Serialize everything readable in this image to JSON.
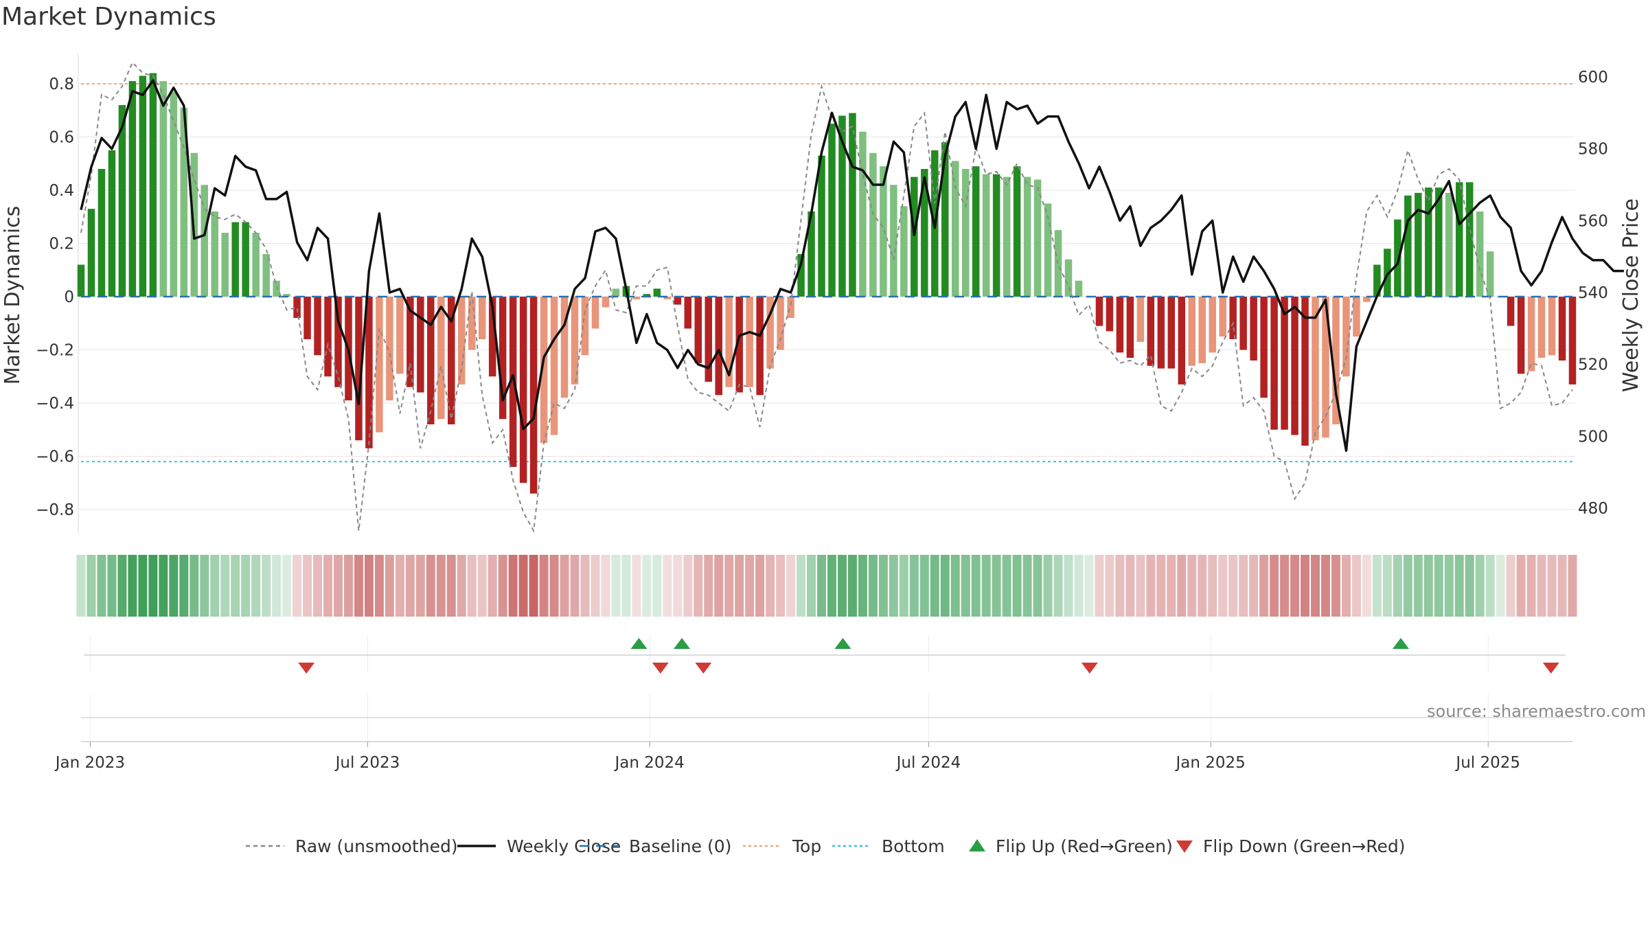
{
  "chart_data": {
    "type": "bar",
    "title": "Market Dynamics",
    "ylabel": "Market Dynamics",
    "y2label": "Weekly Close Price",
    "ylim": [
      -0.9,
      0.9
    ],
    "y2lim": [
      474,
      604
    ],
    "yticks": [
      -0.8,
      -0.6,
      -0.4,
      -0.2,
      0,
      0.2,
      0.4,
      0.6,
      0.8
    ],
    "ytick_labels": [
      "−0.8",
      "−0.6",
      "−0.4",
      "−0.2",
      "0",
      "0.2",
      "0.4",
      "0.6",
      "0.8"
    ],
    "y2ticks": [
      480,
      500,
      520,
      540,
      560,
      580,
      600
    ],
    "y2tick_labels": [
      "480",
      "500",
      "520",
      "540",
      "560",
      "580",
      "600"
    ],
    "x_start": "2022-12-26",
    "x_end": "2025-08-25",
    "xticks": [
      {
        "date": "2023-01-01",
        "label": "Jan 2023"
      },
      {
        "date": "2023-07-01",
        "label": "Jul 2023"
      },
      {
        "date": "2024-01-01",
        "label": "Jan 2024"
      },
      {
        "date": "2024-07-01",
        "label": "Jul 2024"
      },
      {
        "date": "2025-01-01",
        "label": "Jan 2025"
      },
      {
        "date": "2025-07-01",
        "label": "Jul 2025"
      }
    ],
    "top_level": 0.8,
    "bottom_level": -0.62,
    "baseline": 0,
    "series": [
      {
        "name": "Market Dynamics",
        "values": [
          0.12,
          0.33,
          0.48,
          0.55,
          0.72,
          0.81,
          0.83,
          0.84,
          0.81,
          0.77,
          0.71,
          0.54,
          0.42,
          0.32,
          0.24,
          0.28,
          0.28,
          0.24,
          0.16,
          0.06,
          0.01,
          -0.08,
          -0.16,
          -0.22,
          -0.3,
          -0.34,
          -0.39,
          -0.54,
          -0.57,
          -0.51,
          -0.39,
          -0.29,
          -0.34,
          -0.36,
          -0.48,
          -0.46,
          -0.48,
          -0.33,
          -0.2,
          -0.16,
          -0.3,
          -0.46,
          -0.64,
          -0.7,
          -0.74,
          -0.55,
          -0.52,
          -0.38,
          -0.33,
          -0.22,
          -0.12,
          -0.04,
          0.03,
          0.04,
          -0.01,
          0.01,
          0.03,
          -0.01,
          -0.03,
          -0.12,
          -0.25,
          -0.32,
          -0.37,
          -0.34,
          -0.36,
          -0.34,
          -0.37,
          -0.27,
          -0.2,
          -0.08,
          0.16,
          0.32,
          0.53,
          0.65,
          0.68,
          0.69,
          0.62,
          0.54,
          0.49,
          0.42,
          0.34,
          0.45,
          0.48,
          0.55,
          0.58,
          0.51,
          0.48,
          0.49,
          0.46,
          0.46,
          0.45,
          0.49,
          0.45,
          0.44,
          0.35,
          0.25,
          0.14,
          0.06,
          0.0,
          -0.11,
          -0.13,
          -0.21,
          -0.23,
          -0.17,
          -0.26,
          -0.27,
          -0.27,
          -0.33,
          -0.26,
          -0.25,
          -0.21,
          -0.15,
          -0.16,
          -0.2,
          -0.24,
          -0.38,
          -0.5,
          -0.5,
          -0.52,
          -0.56,
          -0.54,
          -0.53,
          -0.48,
          -0.3,
          -0.15,
          -0.02,
          0.12,
          0.18,
          0.29,
          0.38,
          0.39,
          0.41,
          0.41,
          0.39,
          0.43,
          0.43,
          0.32,
          0.17,
          0.0,
          -0.11,
          -0.29,
          -0.28,
          -0.23,
          -0.22,
          -0.24,
          -0.33
        ]
      },
      {
        "name": "Raw (unsmoothed)",
        "values": [
          0.24,
          0.46,
          0.76,
          0.74,
          0.79,
          0.88,
          0.84,
          0.83,
          0.76,
          0.66,
          0.56,
          0.44,
          0.33,
          0.3,
          0.29,
          0.31,
          0.28,
          0.24,
          0.18,
          0.04,
          -0.05,
          -0.04,
          -0.3,
          -0.35,
          -0.18,
          -0.3,
          -0.46,
          -0.88,
          -0.55,
          -0.12,
          -0.21,
          -0.44,
          -0.25,
          -0.57,
          -0.43,
          -0.26,
          -0.46,
          -0.27,
          0.02,
          -0.37,
          -0.55,
          -0.5,
          -0.69,
          -0.81,
          -0.88,
          -0.55,
          -0.4,
          -0.42,
          -0.35,
          -0.05,
          0.04,
          0.1,
          -0.05,
          -0.06,
          0.04,
          0.04,
          0.1,
          0.11,
          -0.11,
          -0.31,
          -0.36,
          -0.37,
          -0.4,
          -0.43,
          -0.33,
          -0.34,
          -0.49,
          -0.26,
          -0.16,
          -0.03,
          0.29,
          0.61,
          0.79,
          0.67,
          0.62,
          0.64,
          0.46,
          0.31,
          0.26,
          0.14,
          0.38,
          0.64,
          0.69,
          0.35,
          0.62,
          0.41,
          0.34,
          0.56,
          0.46,
          0.47,
          0.42,
          0.5,
          0.42,
          0.41,
          0.3,
          0.12,
          0.04,
          -0.07,
          -0.03,
          -0.17,
          -0.2,
          -0.25,
          -0.24,
          -0.26,
          -0.22,
          -0.41,
          -0.43,
          -0.36,
          -0.27,
          -0.3,
          -0.26,
          -0.17,
          -0.1,
          -0.41,
          -0.38,
          -0.43,
          -0.6,
          -0.62,
          -0.76,
          -0.7,
          -0.51,
          -0.45,
          -0.36,
          -0.23,
          0.07,
          0.32,
          0.38,
          0.3,
          0.4,
          0.55,
          0.44,
          0.36,
          0.46,
          0.48,
          0.44,
          0.26,
          0.1,
          -0.01,
          -0.42,
          -0.4,
          -0.36,
          -0.25,
          -0.26,
          -0.41,
          -0.4,
          -0.35
        ]
      },
      {
        "name": "Weekly Close",
        "values": [
          563,
          575,
          583,
          580,
          586,
          596,
          595,
          599,
          592,
          597,
          592,
          555,
          556,
          569,
          567,
          578,
          575,
          574,
          566,
          566,
          568,
          554,
          549,
          558,
          555,
          532,
          524,
          509,
          546,
          562,
          540,
          541,
          535,
          533,
          531,
          536,
          532,
          541,
          555,
          550,
          536,
          510,
          517,
          502,
          505,
          522,
          527,
          531,
          541,
          544,
          557,
          558,
          555,
          541,
          526,
          534,
          526,
          524,
          519,
          524,
          520,
          519,
          524,
          517,
          528,
          529,
          528,
          534,
          541,
          540,
          548,
          562,
          579,
          590,
          582,
          575,
          574,
          570,
          570,
          582,
          579,
          556,
          572,
          558,
          578,
          589,
          593,
          580,
          595,
          580,
          593,
          591,
          592,
          587,
          589,
          589,
          582,
          576,
          569,
          575,
          568,
          560,
          564,
          553,
          558,
          560,
          563,
          567,
          545,
          557,
          560,
          540,
          550,
          543,
          550,
          546,
          541,
          534,
          536,
          533,
          533,
          538,
          512,
          496,
          525,
          532,
          539,
          545,
          548,
          560,
          563,
          562,
          566,
          571,
          559,
          562,
          565,
          567,
          561,
          558,
          546,
          542,
          546,
          554,
          561,
          555,
          551,
          549,
          549,
          546,
          546
        ]
      }
    ],
    "flip_up_dates": [
      "2023-12-25",
      "2024-01-22",
      "2024-05-06",
      "2025-05-05"
    ],
    "flip_down_dates": [
      "2023-05-22",
      "2024-01-08",
      "2024-02-05",
      "2024-10-14",
      "2025-08-11"
    ],
    "legend": {
      "position": "bottom-center",
      "entries": [
        {
          "label": "Raw (unsmoothed)",
          "style": "dashed-line",
          "color": "#888888"
        },
        {
          "label": "Weekly Close",
          "style": "line",
          "color": "#111111"
        },
        {
          "label": "Baseline (0)",
          "style": "dashed-line",
          "color": "#2a6fb0"
        },
        {
          "label": "Top",
          "style": "dotted-line",
          "color": "#f0a878"
        },
        {
          "label": "Bottom",
          "style": "dotted-line",
          "color": "#3ec0d6"
        },
        {
          "label": "Flip Up (Red→Green)",
          "style": "triangle-up",
          "color": "#2a9d45"
        },
        {
          "label": "Flip Down (Green→Red)",
          "style": "triangle-down",
          "color": "#d03a34"
        }
      ]
    },
    "colors": {
      "strong_green": "#228b22",
      "light_green": "#7fbf7f",
      "strong_red": "#b22222",
      "light_red": "#e8957a",
      "top_line": "#f0a878",
      "bottom_line": "#3ec0d6",
      "baseline": "#2a6fb0",
      "raw_line": "#888888",
      "close_line": "#111111",
      "flip_up": "#2a9d45",
      "flip_down": "#d03a34"
    }
  },
  "source": "source: sharemaestro.com"
}
